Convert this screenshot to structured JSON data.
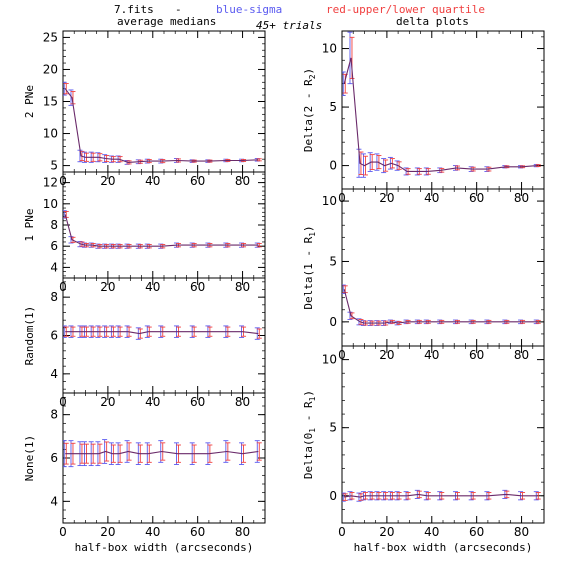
{
  "header": {
    "file": "7.fits",
    "dash": "-",
    "blue_note": "blue-sigma",
    "red_note": "red-upper/lower quartile",
    "trials": "45+ trials",
    "left_col_title": "average medians",
    "right_col_title": "delta plots"
  },
  "colors": {
    "blue": "#5a5af0",
    "red": "#f04040",
    "line": "#6a2a6a",
    "frame": "#000000"
  },
  "chart_data": [
    {
      "type": "line",
      "column": "left",
      "row": 0,
      "ylabel": "2 PNe",
      "xlabel": "",
      "xlim": [
        0,
        90
      ],
      "ylim": [
        4,
        26
      ],
      "xticks": [
        0,
        20,
        40,
        60,
        80
      ],
      "yticks": [
        5,
        10,
        15,
        20,
        25
      ],
      "x": [
        1,
        4,
        8,
        10,
        13,
        16,
        19,
        22,
        25,
        29,
        34,
        38,
        44,
        51,
        58,
        65,
        73,
        80,
        87
      ],
      "y": [
        17.0,
        15.6,
        6.5,
        6.3,
        6.3,
        6.3,
        6.1,
        6.0,
        6.0,
        5.5,
        5.6,
        5.7,
        5.7,
        5.8,
        5.7,
        5.7,
        5.8,
        5.8,
        5.9
      ],
      "err": [
        1.0,
        1.2,
        0.9,
        0.8,
        0.8,
        0.7,
        0.6,
        0.5,
        0.5,
        0.3,
        0.3,
        0.3,
        0.3,
        0.3,
        0.2,
        0.2,
        0.2,
        0.2,
        0.2
      ]
    },
    {
      "type": "line",
      "column": "left",
      "row": 1,
      "ylabel": "1 PNe",
      "xlabel": "",
      "xlim": [
        0,
        90
      ],
      "ylim": [
        3,
        13
      ],
      "xticks": [
        0,
        20,
        40,
        60,
        80
      ],
      "yticks": [
        4,
        6,
        8,
        10,
        12
      ],
      "x": [
        1,
        4,
        8,
        10,
        13,
        16,
        19,
        22,
        25,
        29,
        34,
        38,
        44,
        51,
        58,
        65,
        73,
        80,
        87
      ],
      "y": [
        9.0,
        6.6,
        6.2,
        6.1,
        6.1,
        6.0,
        6.0,
        6.0,
        6.0,
        6.0,
        6.0,
        6.0,
        6.0,
        6.1,
        6.1,
        6.1,
        6.1,
        6.1,
        6.1
      ],
      "err": [
        0.35,
        0.3,
        0.25,
        0.2,
        0.2,
        0.2,
        0.2,
        0.2,
        0.2,
        0.2,
        0.2,
        0.2,
        0.2,
        0.2,
        0.2,
        0.2,
        0.2,
        0.2,
        0.2
      ]
    },
    {
      "type": "line",
      "column": "left",
      "row": 2,
      "ylabel": "Random(1)",
      "xlabel": "",
      "xlim": [
        0,
        90
      ],
      "ylim": [
        3,
        9
      ],
      "xticks": [
        0,
        20,
        40,
        60,
        80
      ],
      "yticks": [
        4,
        6,
        8
      ],
      "x": [
        1,
        4,
        8,
        10,
        13,
        16,
        19,
        22,
        25,
        29,
        34,
        38,
        44,
        51,
        58,
        65,
        73,
        80,
        87
      ],
      "y": [
        6.2,
        6.2,
        6.2,
        6.2,
        6.2,
        6.2,
        6.2,
        6.2,
        6.2,
        6.2,
        6.1,
        6.2,
        6.2,
        6.2,
        6.2,
        6.2,
        6.2,
        6.2,
        6.1
      ],
      "err": [
        0.3,
        0.3,
        0.3,
        0.3,
        0.3,
        0.3,
        0.3,
        0.3,
        0.3,
        0.3,
        0.3,
        0.3,
        0.3,
        0.3,
        0.3,
        0.3,
        0.3,
        0.3,
        0.3
      ]
    },
    {
      "type": "line",
      "column": "left",
      "row": 3,
      "ylabel": "None(1)",
      "xlabel": "half-box width (arcseconds)",
      "xlim": [
        0,
        90
      ],
      "ylim": [
        3,
        9
      ],
      "xticks": [
        0,
        20,
        40,
        60,
        80
      ],
      "yticks": [
        4,
        6,
        8
      ],
      "x": [
        1,
        4,
        8,
        10,
        13,
        16,
        19,
        22,
        25,
        29,
        34,
        38,
        44,
        51,
        58,
        65,
        73,
        80,
        87
      ],
      "y": [
        6.2,
        6.2,
        6.2,
        6.2,
        6.2,
        6.2,
        6.3,
        6.2,
        6.2,
        6.3,
        6.2,
        6.2,
        6.3,
        6.2,
        6.2,
        6.2,
        6.3,
        6.2,
        6.3
      ],
      "err": [
        0.6,
        0.6,
        0.55,
        0.55,
        0.55,
        0.55,
        0.55,
        0.5,
        0.5,
        0.5,
        0.5,
        0.5,
        0.5,
        0.5,
        0.5,
        0.5,
        0.5,
        0.5,
        0.5
      ]
    },
    {
      "type": "line",
      "column": "right",
      "row": 0,
      "ylabel": "Delta(2 - R2)",
      "xlabel": "",
      "xlim": [
        0,
        90
      ],
      "ylim": [
        -2,
        11.5
      ],
      "xticks": [
        0,
        20,
        40,
        60,
        80
      ],
      "yticks": [
        0,
        5,
        10
      ],
      "x": [
        1,
        4,
        8,
        10,
        13,
        16,
        19,
        22,
        25,
        29,
        34,
        38,
        44,
        51,
        58,
        65,
        73,
        80,
        87
      ],
      "y": [
        7.0,
        9.2,
        0.2,
        0.0,
        0.3,
        0.3,
        0.0,
        0.2,
        0.0,
        -0.5,
        -0.5,
        -0.5,
        -0.4,
        -0.2,
        -0.3,
        -0.3,
        -0.1,
        -0.1,
        0.0
      ],
      "err": [
        1.0,
        2.2,
        1.2,
        1.0,
        0.8,
        0.7,
        0.6,
        0.5,
        0.4,
        0.3,
        0.3,
        0.3,
        0.2,
        0.2,
        0.2,
        0.2,
        0.1,
        0.1,
        0.1
      ]
    },
    {
      "type": "line",
      "column": "right",
      "row": 1,
      "ylabel": "Delta(1 - R1)",
      "xlabel": "",
      "xlim": [
        0,
        90
      ],
      "ylim": [
        -2,
        11
      ],
      "xticks": [
        0,
        20,
        40,
        60,
        80
      ],
      "yticks": [
        0,
        5,
        10
      ],
      "x": [
        1,
        4,
        8,
        10,
        13,
        16,
        19,
        22,
        25,
        29,
        34,
        38,
        44,
        51,
        58,
        65,
        73,
        80,
        87
      ],
      "y": [
        2.7,
        0.5,
        0.0,
        -0.1,
        -0.1,
        -0.1,
        -0.1,
        0.0,
        -0.1,
        0.0,
        0.0,
        0.0,
        0.0,
        0.0,
        0.0,
        0.0,
        0.0,
        0.0,
        0.0
      ],
      "err": [
        0.35,
        0.3,
        0.25,
        0.2,
        0.2,
        0.2,
        0.2,
        0.15,
        0.15,
        0.15,
        0.15,
        0.15,
        0.15,
        0.15,
        0.15,
        0.15,
        0.15,
        0.15,
        0.15
      ]
    },
    {
      "type": "line",
      "column": "right",
      "row": 2,
      "ylabel": "Delta(01 - R1)",
      "xlabel": "half-box width (arcseconds)",
      "xlim": [
        0,
        90
      ],
      "ylim": [
        -2,
        11
      ],
      "xticks": [
        0,
        20,
        40,
        60,
        80
      ],
      "yticks": [
        0,
        5,
        10
      ],
      "x": [
        1,
        4,
        8,
        10,
        13,
        16,
        19,
        22,
        25,
        29,
        34,
        38,
        44,
        51,
        58,
        65,
        73,
        80,
        87
      ],
      "y": [
        -0.1,
        0.0,
        -0.1,
        0.0,
        0.0,
        0.0,
        0.0,
        0.0,
        0.0,
        0.0,
        0.1,
        0.0,
        0.0,
        0.0,
        0.0,
        0.0,
        0.1,
        0.0,
        0.0
      ],
      "err": [
        0.3,
        0.3,
        0.3,
        0.3,
        0.3,
        0.3,
        0.3,
        0.3,
        0.3,
        0.3,
        0.3,
        0.3,
        0.3,
        0.3,
        0.3,
        0.3,
        0.3,
        0.3,
        0.3
      ]
    }
  ]
}
